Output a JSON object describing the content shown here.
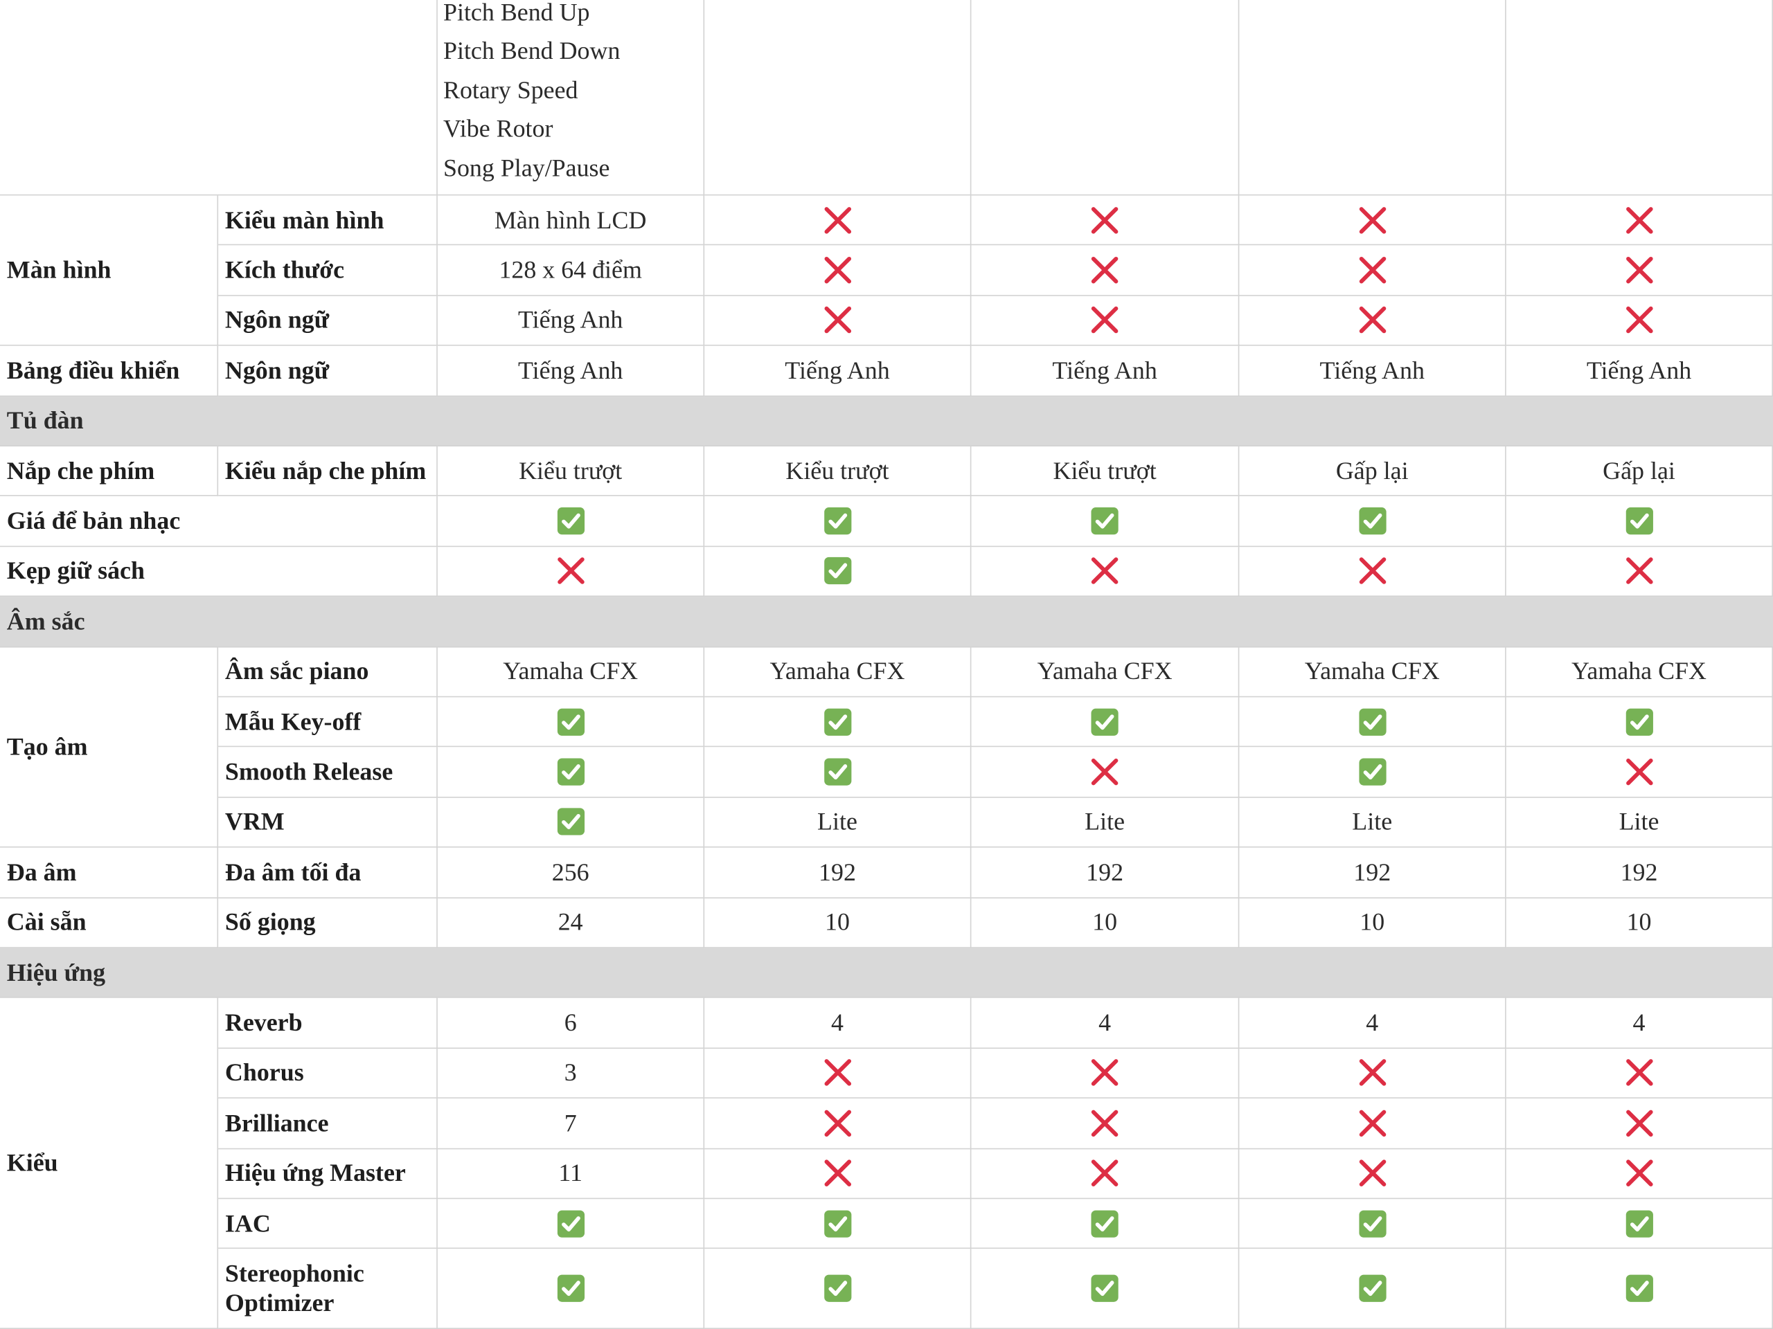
{
  "rows": [
    {
      "rows": [
        {
          "cells": [
            [
              "Pitch Bend Up",
              "Pitch Bend Down",
              "Rotary Speed",
              "Vibe Rotor",
              "Song Play/Pause"
            ],
            null,
            null,
            null,
            null
          ]
        }
      ]
    },
    {
      "label": "Màn hình",
      "rows": [
        {
          "label": "Kiểu màn hình",
          "cells": [
            "Màn hình LCD",
            "❌",
            "❌",
            "❌",
            "❌"
          ]
        },
        {
          "label": "Kích thước",
          "cells": [
            "128 x 64 điểm",
            "❌",
            "❌",
            "❌",
            "❌"
          ]
        },
        {
          "label": "Ngôn ngữ",
          "cells": [
            "Tiếng Anh",
            "❌",
            "❌",
            "❌",
            "❌"
          ]
        }
      ]
    },
    {
      "label": "Bảng điều khiển",
      "rows": [
        {
          "label": "Ngôn ngữ",
          "cells": [
            "Tiếng Anh",
            "Tiếng Anh",
            "Tiếng Anh",
            "Tiếng Anh",
            "Tiếng Anh"
          ]
        }
      ]
    },
    {
      "section": "Tủ đàn"
    },
    {
      "label": "Nắp che phím",
      "rows": [
        {
          "label": "Kiểu nắp che phím",
          "cells": [
            "Kiểu trượt",
            "Kiểu trượt",
            "Kiểu trượt",
            "Gấp lại",
            "Gấp lại"
          ]
        }
      ]
    },
    {
      "label": "Giá để bản nhạc",
      "rows": [
        {
          "cells": [
            "✅",
            "✅",
            "✅",
            "✅",
            "✅"
          ]
        }
      ]
    },
    {
      "label": "Kẹp giữ sách",
      "rows": [
        {
          "cells": [
            "❌",
            "✅",
            "❌",
            "❌",
            "❌"
          ]
        }
      ]
    },
    {
      "section": "Âm sắc"
    },
    {
      "label": "Tạo âm",
      "rows": [
        {
          "label": "Âm sắc piano",
          "cells": [
            "Yamaha CFX",
            "Yamaha CFX",
            "Yamaha CFX",
            "Yamaha CFX",
            "Yamaha CFX"
          ]
        },
        {
          "label": "Mẫu Key-off",
          "cells": [
            "✅",
            "✅",
            "✅",
            "✅",
            "✅"
          ]
        },
        {
          "label": "Smooth Release",
          "cells": [
            "✅",
            "✅",
            "❌",
            "✅",
            "❌"
          ]
        },
        {
          "label": "VRM",
          "cells": [
            "✅",
            "Lite",
            "Lite",
            "Lite",
            "Lite"
          ]
        }
      ]
    },
    {
      "label": "Đa âm",
      "rows": [
        {
          "label": "Đa âm tối đa",
          "cells": [
            256,
            192,
            192,
            192,
            192
          ]
        }
      ]
    },
    {
      "label": "Cài sẵn",
      "rows": [
        {
          "label": "Số giọng",
          "cells": [
            24,
            10,
            10,
            10,
            10
          ]
        }
      ]
    },
    {
      "section": "Hiệu ứng"
    },
    {
      "label": "Kiểu",
      "rows": [
        {
          "label": "Reverb",
          "cells": [
            6,
            4,
            4,
            4,
            4
          ]
        },
        {
          "label": "Chorus",
          "cells": [
            3,
            "❌",
            "❌",
            "❌",
            "❌"
          ]
        },
        {
          "label": "Brilliance",
          "cells": [
            7,
            "❌",
            "❌",
            "❌",
            "❌"
          ]
        },
        {
          "label": "Hiệu ứng Master",
          "cells": [
            11,
            "❌",
            "❌",
            "❌",
            "❌"
          ]
        },
        {
          "label": "IAC",
          "cells": [
            "✅",
            "✅",
            "✅",
            "✅",
            "✅"
          ]
        },
        {
          "label": "Stereophonic Optimizer",
          "cells": [
            "✅",
            "✅",
            "✅",
            "✅",
            "✅"
          ]
        }
      ]
    }
  ]
}
